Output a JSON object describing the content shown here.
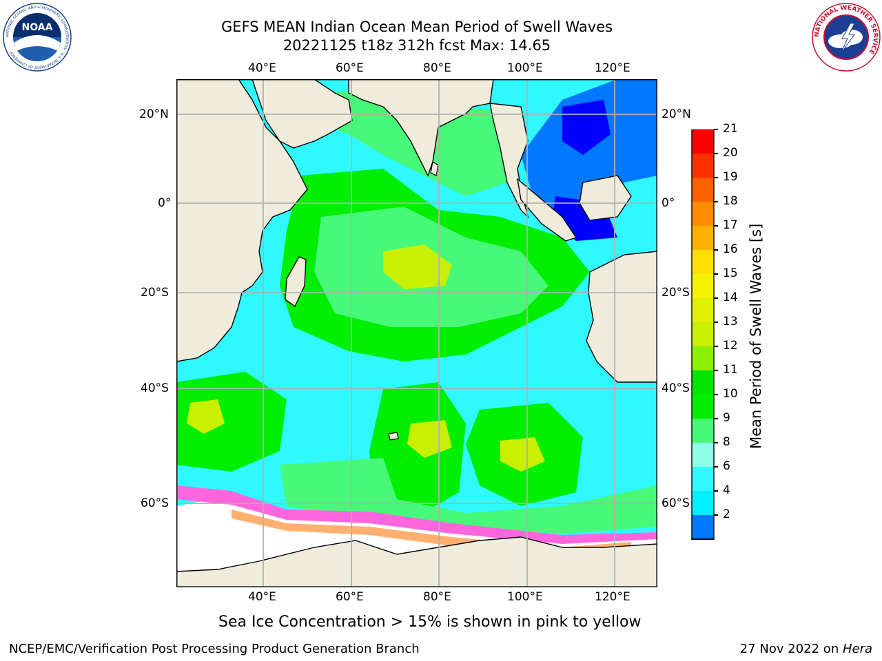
{
  "title": {
    "line1": "GEFS MEAN Indian Ocean Mean Period of Swell Waves",
    "line2": "20221125 t18z 312h fcst   Max: 14.65"
  },
  "map": {
    "lon_labels": [
      "40°E",
      "60°E",
      "80°E",
      "100°E",
      "120°E"
    ],
    "lat_labels_left": [
      "20°N",
      "0°",
      "20°S",
      "40°S",
      "60°S"
    ],
    "lat_labels_right": [
      "20°N",
      "0°",
      "20°S",
      "40°S",
      "60°S"
    ],
    "land_color": "#efecdc",
    "grid_color": "#b0b0b0"
  },
  "colorbar": {
    "label": "Mean Period of Swell Waves [s]",
    "ticks": [
      "21",
      "20",
      "19",
      "18",
      "17",
      "16",
      "15",
      "14",
      "13",
      "12",
      "11",
      "10",
      "9",
      "8",
      "6",
      "4",
      "2"
    ],
    "colors": [
      "#ff0000",
      "#ff3000",
      "#ff6000",
      "#ff8c00",
      "#ffb000",
      "#ffe000",
      "#f4f400",
      "#e0f000",
      "#c8f000",
      "#8cf000",
      "#00e600",
      "#00ee00",
      "#48f878",
      "#90ffe8",
      "#30f8ff",
      "#00f0ff",
      "#0078ff",
      "#0000ff"
    ]
  },
  "caption": "Sea Ice Concentration > 15% is shown in pink to yellow",
  "footer": {
    "left": "NCEP/EMC/Verification Post Processing Product Generation Branch",
    "right_date": "27 Nov 2022 on ",
    "right_machine": "Hera"
  },
  "logos": {
    "noaa_text": "NOAA",
    "noaa_ring": "NATIONAL OCEANIC AND ATMOSPHERIC ADMINISTRATION · U.S. DEPARTMENT OF COMMERCE",
    "nws_ring": "NATIONAL WEATHER SERVICE"
  }
}
